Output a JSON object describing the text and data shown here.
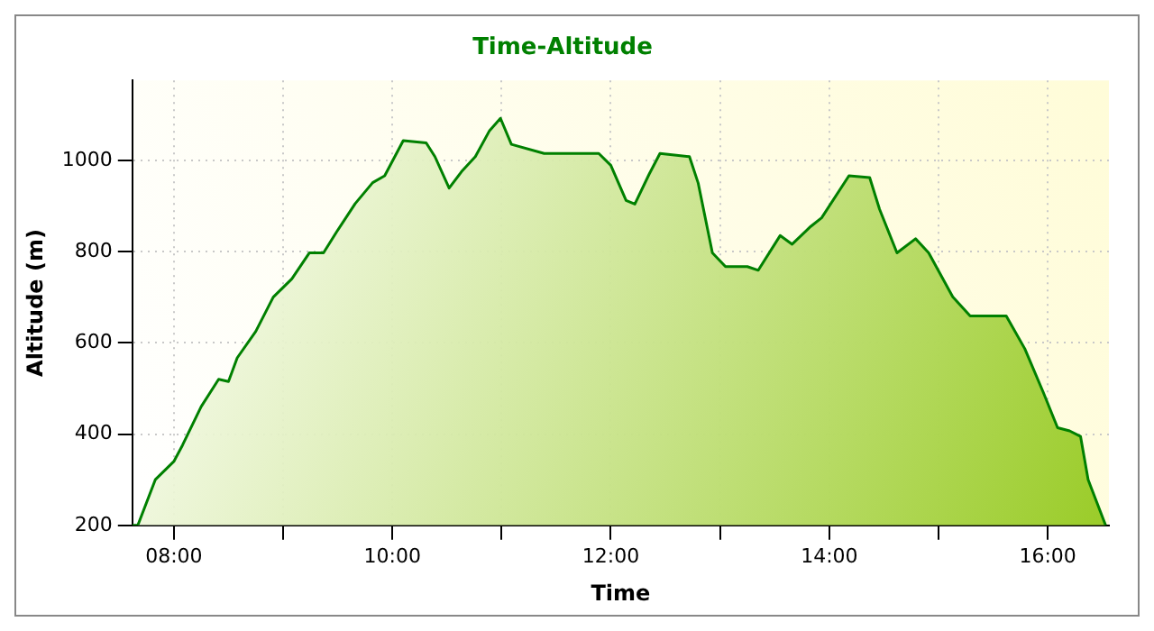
{
  "chart_data": {
    "type": "area",
    "title": "Time-Altitude",
    "xlabel": "Time",
    "ylabel": "Altitude (m)",
    "xlim": [
      7.62,
      16.56
    ],
    "ylim": [
      200,
      1175
    ],
    "xticks": [
      {
        "value": 8,
        "label": "08:00"
      },
      {
        "value": 9,
        "label": null
      },
      {
        "value": 10,
        "label": "10:00"
      },
      {
        "value": 11,
        "label": null
      },
      {
        "value": 12,
        "label": "12:00"
      },
      {
        "value": 13,
        "label": null
      },
      {
        "value": 14,
        "label": "14:00"
      },
      {
        "value": 15,
        "label": null
      },
      {
        "value": 16,
        "label": "16:00"
      }
    ],
    "yticks": [
      200,
      400,
      600,
      800,
      1000
    ],
    "grid": true,
    "legend": false,
    "series": [
      {
        "color": "#008000",
        "x": [
          7.62,
          7.67,
          7.83,
          8.0,
          8.08,
          8.25,
          8.41,
          8.5,
          8.58,
          8.75,
          8.91,
          9.08,
          9.24,
          9.37,
          9.49,
          9.66,
          9.82,
          9.93,
          10.1,
          10.31,
          10.39,
          10.52,
          10.64,
          10.76,
          10.89,
          10.99,
          11.09,
          11.39,
          11.89,
          12.0,
          12.14,
          12.22,
          12.35,
          12.45,
          12.72,
          12.8,
          12.93,
          13.05,
          13.25,
          13.35,
          13.55,
          13.66,
          13.83,
          13.93,
          14.18,
          14.37,
          14.46,
          14.62,
          14.79,
          14.91,
          15.13,
          15.29,
          15.62,
          15.79,
          15.96,
          16.09,
          16.2,
          16.3,
          16.37,
          16.45,
          16.53
        ],
        "values": [
          200,
          200,
          300,
          340,
          376,
          460,
          520,
          515,
          567,
          625,
          700,
          740,
          797,
          797,
          843,
          905,
          951,
          966,
          1043,
          1038,
          1008,
          939,
          977,
          1008,
          1065,
          1092,
          1035,
          1015,
          1015,
          989,
          912,
          904,
          969,
          1015,
          1008,
          950,
          797,
          767,
          767,
          759,
          835,
          816,
          855,
          874,
          966,
          962,
          893,
          797,
          828,
          797,
          701,
          659,
          659,
          587,
          491,
          414,
          407,
          395,
          300,
          250,
          200
        ]
      }
    ]
  }
}
